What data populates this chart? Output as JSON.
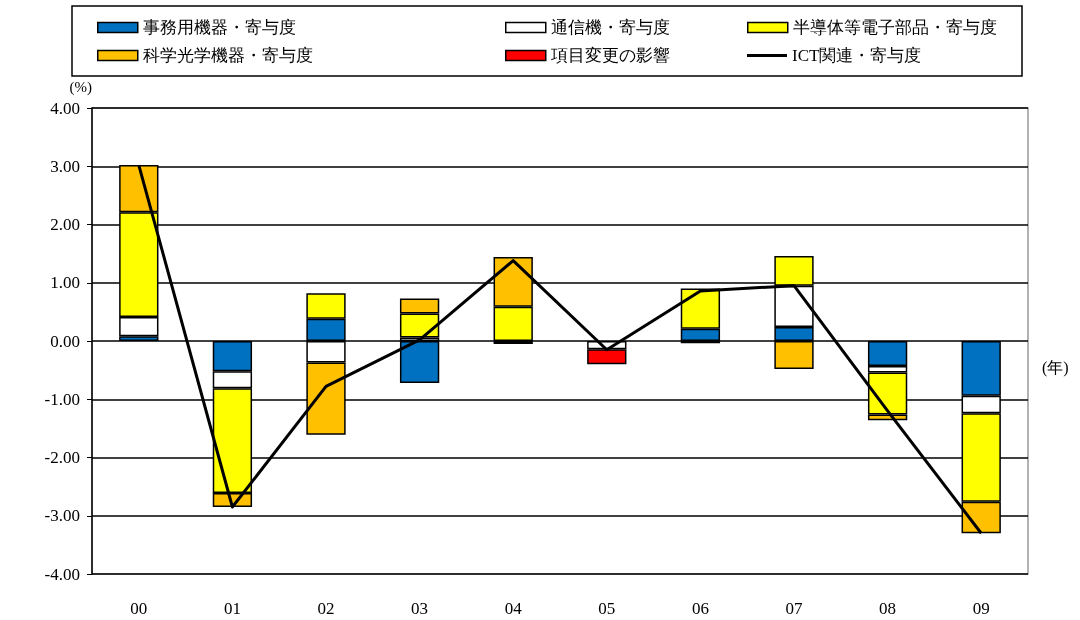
{
  "chart_data": {
    "type": "bar",
    "stacked": true,
    "categories": [
      "00",
      "01",
      "02",
      "03",
      "04",
      "05",
      "06",
      "07",
      "08",
      "09"
    ],
    "ylabel": "(%)",
    "xlabel": "(年)",
    "ylim": [
      -4,
      4
    ],
    "yticks": [
      {
        "value": -4,
        "label": "-4.00"
      },
      {
        "value": -3,
        "label": "-3.00"
      },
      {
        "value": -2,
        "label": "-2.00"
      },
      {
        "value": -1,
        "label": "-1.00"
      },
      {
        "value": 0,
        "label": "0.00"
      },
      {
        "value": 1,
        "label": "1.00"
      },
      {
        "value": 2,
        "label": "2.00"
      },
      {
        "value": 3,
        "label": "3.00"
      },
      {
        "value": 4,
        "label": "4.00"
      }
    ],
    "grid": "y",
    "legend": "top",
    "series": [
      {
        "name": "事務用機器・寄与度",
        "color": "#0070c0",
        "values": [
          0.08,
          -0.52,
          0.38,
          -0.72,
          null,
          null,
          0.21,
          0.24,
          -0.43,
          -0.94
        ]
      },
      {
        "name": "通信機・寄与度",
        "color": "#ffffff",
        "values": [
          0.33,
          -0.29,
          -0.37,
          0.06,
          -0.05,
          -0.14,
          -0.04,
          0.71,
          -0.11,
          -0.3
        ]
      },
      {
        "name": "半導体等電子部品・寄与度",
        "color": "#ffff00",
        "values": [
          1.8,
          -1.8,
          0.44,
          0.41,
          0.59,
          null,
          0.69,
          0.51,
          -0.72,
          -1.52
        ]
      },
      {
        "name": "科学光学機器・寄与度",
        "color": "#ffc000",
        "values": [
          0.81,
          -0.24,
          -1.24,
          0.26,
          0.85,
          null,
          null,
          -0.48,
          -0.1,
          -0.54
        ]
      },
      {
        "name": "項目変更の影響",
        "color": "#ff0000",
        "values": [
          null,
          null,
          null,
          null,
          null,
          -0.26,
          null,
          null,
          null,
          null
        ]
      },
      {
        "name": "ICT関連・寄与度",
        "type": "line",
        "color": "#000000",
        "marker": "none",
        "values": [
          3.02,
          -2.85,
          -0.78,
          0.02,
          1.38,
          -0.15,
          0.86,
          0.95,
          -1.2,
          -3.3
        ]
      }
    ]
  }
}
